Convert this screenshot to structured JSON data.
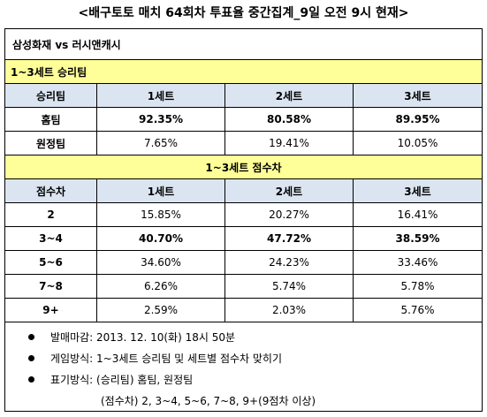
{
  "title": "<배구토토 매치 64회차 투표율 중간집계_9일 오전 9시 현재>",
  "match": "삼성화재 vs 러시앤캐시",
  "win_team": {
    "section_label": "1~3세트 승리팀",
    "headers": [
      "승리팀",
      "1세트",
      "2세트",
      "3세트"
    ],
    "rows": [
      {
        "label": "홈팀",
        "values": [
          "92.35%",
          "80.58%",
          "89.95%"
        ]
      },
      {
        "label": "원정팀",
        "values": [
          "7.65%",
          "19.41%",
          "10.05%"
        ]
      }
    ]
  },
  "score_diff": {
    "section_label": "1~3세트 점수차",
    "headers": [
      "점수차",
      "1세트",
      "2세트",
      "3세트"
    ],
    "rows": [
      {
        "label": "2",
        "values": [
          "15.85%",
          "20.27%",
          "16.41%"
        ]
      },
      {
        "label": "3~4",
        "values": [
          "40.70%",
          "47.72%",
          "38.59%"
        ]
      },
      {
        "label": "5~6",
        "values": [
          "34.60%",
          "24.23%",
          "33.46%"
        ]
      },
      {
        "label": "7~8",
        "values": [
          "6.26%",
          "5.74%",
          "5.78%"
        ]
      },
      {
        "label": "9+",
        "values": [
          "2.59%",
          "2.03%",
          "5.76%"
        ]
      }
    ]
  },
  "notes": [
    "발매마감: 2013. 12. 10(화) 18시 50분",
    "게임방식: 1~3세트 승리팀 및 세트별 점수차 맞히기",
    "표기방식: (승리팀) 홈팀, 원정팀"
  ],
  "notes_continuation": "(점수차) 2, 3~4, 5~6, 7~8, 9+(9점차 이상)"
}
